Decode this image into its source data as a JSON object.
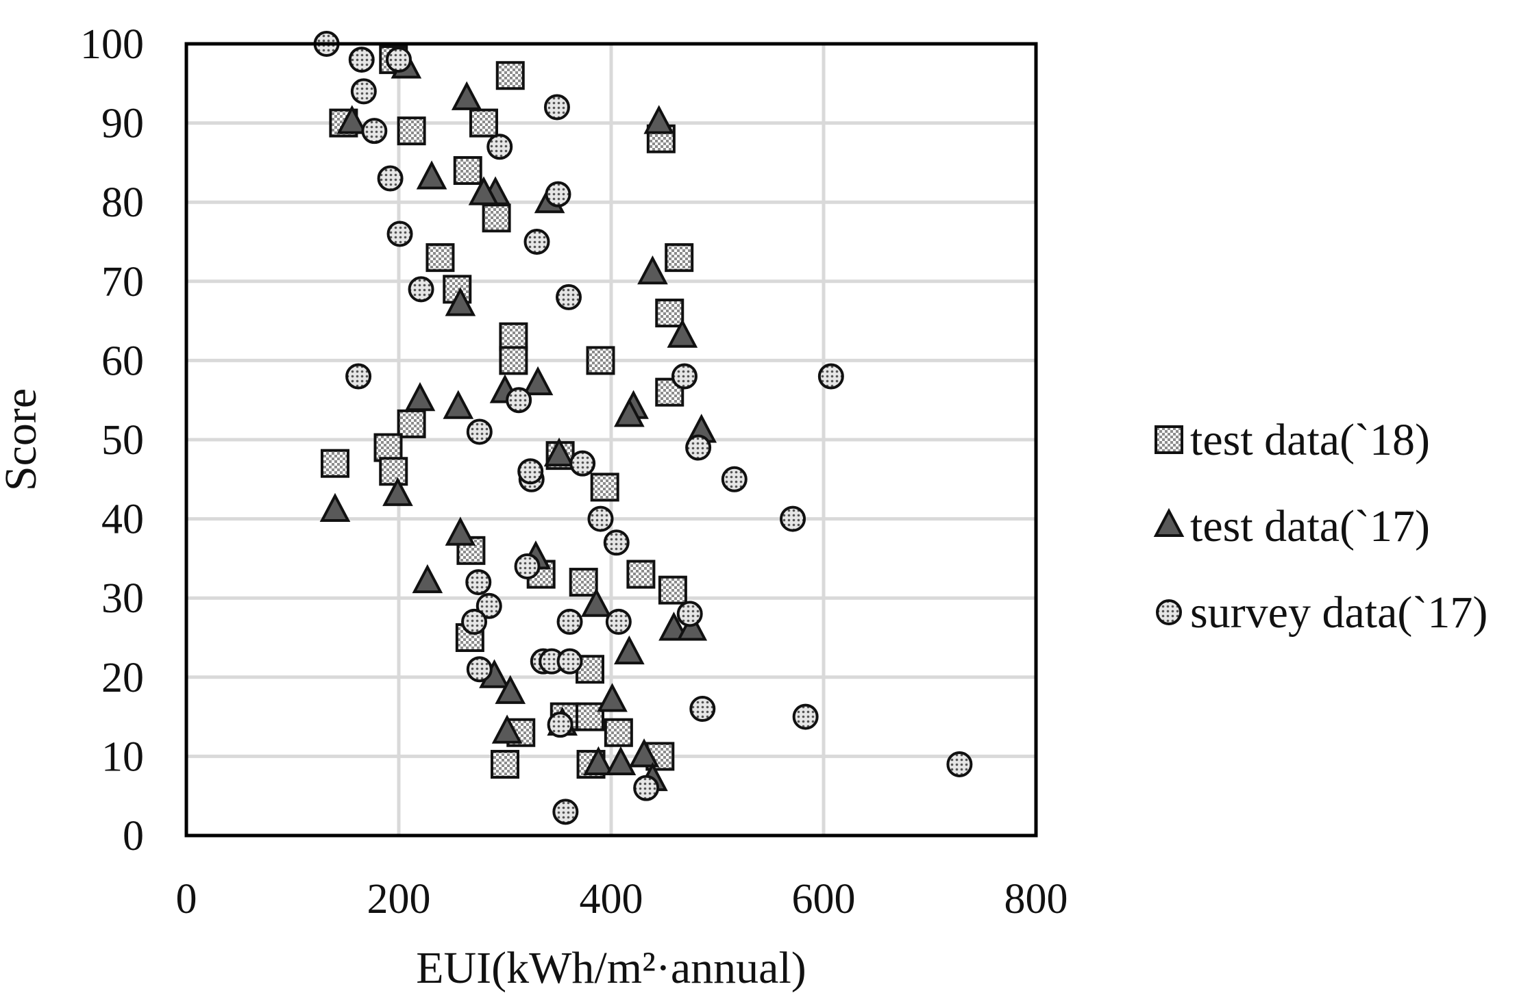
{
  "chart_data": {
    "type": "scatter",
    "title": "",
    "xlabel": "EUI(kWh/m²·annual)",
    "ylabel": "Score",
    "xlim": [
      0,
      800
    ],
    "ylim": [
      0,
      100
    ],
    "xticks": [
      0,
      200,
      400,
      600,
      800
    ],
    "yticks": [
      0,
      10,
      20,
      30,
      40,
      50,
      60,
      70,
      80,
      90,
      100
    ],
    "grid": true,
    "legend_position": "right",
    "series": [
      {
        "name": "test data(`18)",
        "marker": "square",
        "points": [
          [
            195,
            98
          ],
          [
            305,
            96
          ],
          [
            148,
            90
          ],
          [
            280,
            90
          ],
          [
            212,
            89
          ],
          [
            447,
            88
          ],
          [
            265,
            84
          ],
          [
            292,
            78
          ],
          [
            464,
            73
          ],
          [
            239,
            73
          ],
          [
            255,
            69
          ],
          [
            455,
            66
          ],
          [
            308,
            63
          ],
          [
            308,
            60
          ],
          [
            390,
            60
          ],
          [
            455,
            56
          ],
          [
            212,
            52
          ],
          [
            190,
            49
          ],
          [
            352,
            48
          ],
          [
            140,
            47
          ],
          [
            195,
            46
          ],
          [
            394,
            44
          ],
          [
            268,
            36
          ],
          [
            334,
            33
          ],
          [
            428,
            33
          ],
          [
            374,
            32
          ],
          [
            458,
            31
          ],
          [
            267,
            25
          ],
          [
            380,
            21
          ],
          [
            356,
            15
          ],
          [
            380,
            15
          ],
          [
            315,
            13
          ],
          [
            407,
            13
          ],
          [
            300,
            9
          ],
          [
            381,
            9
          ],
          [
            446,
            10
          ]
        ]
      },
      {
        "name": "test data(`17)",
        "marker": "triangle",
        "points": [
          [
            207,
            97
          ],
          [
            264,
            93
          ],
          [
            156,
            90
          ],
          [
            445,
            90
          ],
          [
            231,
            83
          ],
          [
            291,
            81
          ],
          [
            280,
            81
          ],
          [
            342,
            80
          ],
          [
            439,
            71
          ],
          [
            258,
            67
          ],
          [
            467,
            63
          ],
          [
            331,
            57
          ],
          [
            300,
            56
          ],
          [
            220,
            55
          ],
          [
            256,
            54
          ],
          [
            421,
            54
          ],
          [
            417,
            53
          ],
          [
            485,
            51
          ],
          [
            351,
            48
          ],
          [
            140,
            41
          ],
          [
            199,
            43
          ],
          [
            258,
            38
          ],
          [
            329,
            35
          ],
          [
            227,
            32
          ],
          [
            386,
            29
          ],
          [
            459,
            26
          ],
          [
            476,
            26
          ],
          [
            417,
            23
          ],
          [
            290,
            20
          ],
          [
            305,
            18
          ],
          [
            401,
            17
          ],
          [
            302,
            13
          ],
          [
            354,
            14
          ],
          [
            431,
            10
          ],
          [
            388,
            9
          ],
          [
            409,
            9
          ],
          [
            439,
            7
          ]
        ]
      },
      {
        "name": "survey data(`17)",
        "marker": "circle",
        "points": [
          [
            132,
            100
          ],
          [
            165,
            98
          ],
          [
            200,
            98
          ],
          [
            167,
            94
          ],
          [
            349,
            92
          ],
          [
            177,
            89
          ],
          [
            295,
            87
          ],
          [
            192,
            83
          ],
          [
            350,
            81
          ],
          [
            201,
            76
          ],
          [
            330,
            75
          ],
          [
            221,
            69
          ],
          [
            360,
            68
          ],
          [
            162,
            58
          ],
          [
            469,
            58
          ],
          [
            607,
            58
          ],
          [
            313,
            55
          ],
          [
            276,
            51
          ],
          [
            482,
            49
          ],
          [
            373,
            47
          ],
          [
            325,
            45
          ],
          [
            324,
            46
          ],
          [
            516,
            45
          ],
          [
            390,
            40
          ],
          [
            571,
            40
          ],
          [
            405,
            37
          ],
          [
            321,
            34
          ],
          [
            275,
            32
          ],
          [
            285,
            29
          ],
          [
            361,
            27
          ],
          [
            271,
            27
          ],
          [
            407,
            27
          ],
          [
            474,
            28
          ],
          [
            336,
            22
          ],
          [
            344,
            22
          ],
          [
            361,
            22
          ],
          [
            276,
            21
          ],
          [
            486,
            16
          ],
          [
            583,
            15
          ],
          [
            352,
            14
          ],
          [
            433,
            6
          ],
          [
            357,
            3
          ],
          [
            728,
            9
          ]
        ]
      }
    ]
  }
}
